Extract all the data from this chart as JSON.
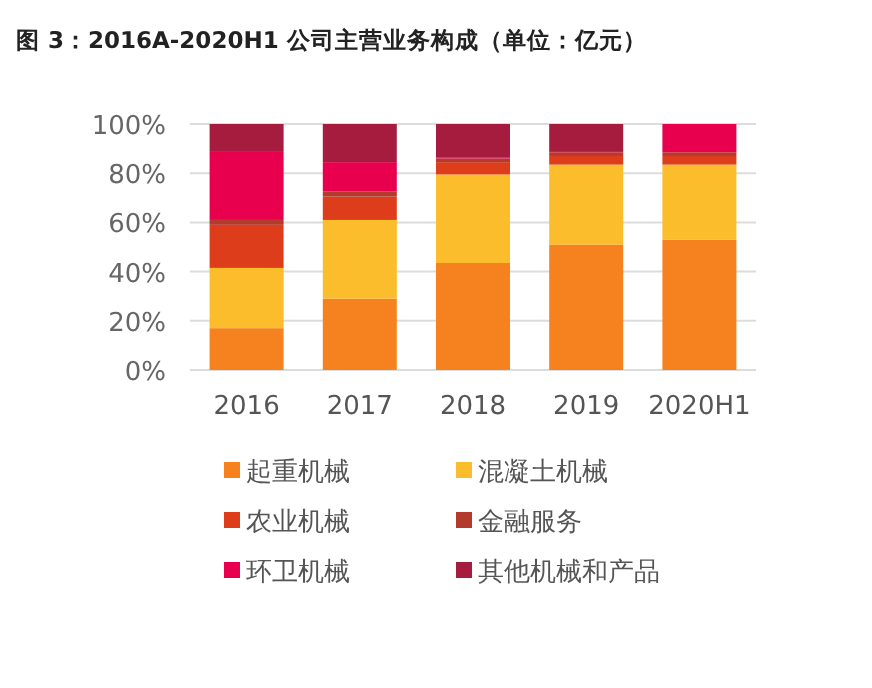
{
  "chart_data": {
    "type": "bar",
    "stacked": true,
    "title": "图 3：2016A-2020H1  公司主营业务构成（单位：亿元）",
    "categories": [
      "2016",
      "2017",
      "2018",
      "2019",
      "2020H1"
    ],
    "series": [
      {
        "name": "起重机械",
        "color": "#f5821f",
        "values": [
          17,
          29,
          43.5,
          51,
          53
        ]
      },
      {
        "name": "混凝土机械",
        "color": "#fbbd2c",
        "values": [
          24.5,
          32,
          36,
          32.5,
          30.5
        ]
      },
      {
        "name": "农业机械",
        "color": "#dd3d1b",
        "values": [
          17.5,
          9.5,
          5,
          3.5,
          3.5
        ]
      },
      {
        "name": "金融服务",
        "color": "#b53a2e",
        "values": [
          2,
          2,
          1.5,
          1.5,
          1.5
        ]
      },
      {
        "name": "环卫机械",
        "color": "#e8004f",
        "values": [
          28,
          12,
          0.5,
          0.5,
          11.5
        ]
      },
      {
        "name": "其他机械和产品",
        "color": "#a51c3f",
        "values": [
          11,
          15.5,
          13.5,
          11,
          0
        ]
      }
    ],
    "ylim": [
      0,
      100
    ],
    "yticks": [
      {
        "value": 0,
        "label": "0%"
      },
      {
        "value": 20,
        "label": "20%"
      },
      {
        "value": 40,
        "label": "40%"
      },
      {
        "value": 60,
        "label": "60%"
      },
      {
        "value": 80,
        "label": "80%"
      },
      {
        "value": 100,
        "label": "100%"
      }
    ],
    "grid": "y",
    "legend": "bottom"
  }
}
